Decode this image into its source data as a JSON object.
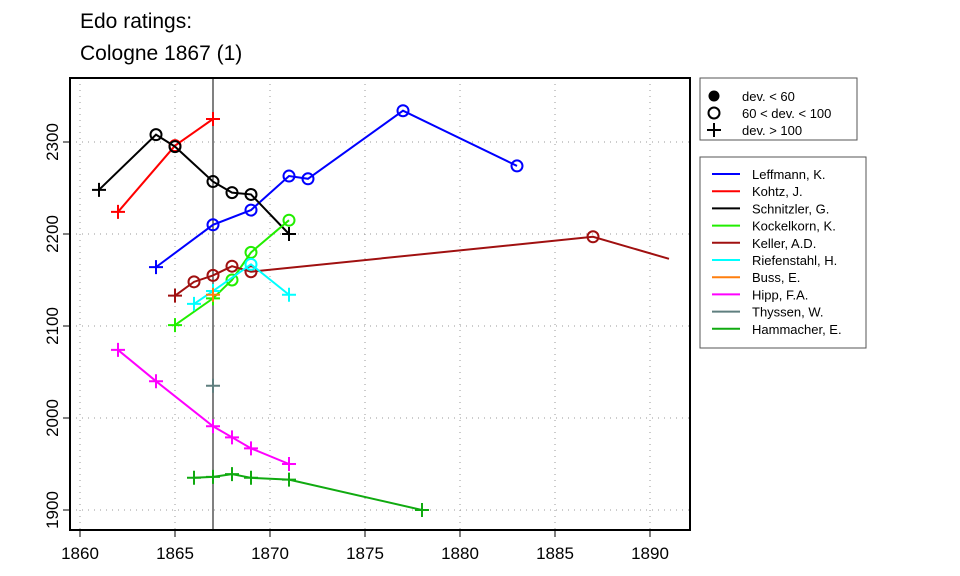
{
  "chart_data": {
    "type": "line",
    "title": [
      "Edo ratings:",
      "Cologne 1867 (1)"
    ],
    "xlim": [
      1859.5,
      1892
    ],
    "ylim": [
      1880,
      2370
    ],
    "xticks": [
      1860,
      1865,
      1870,
      1875,
      1880,
      1885,
      1890
    ],
    "yticks": [
      1900,
      2000,
      2100,
      2200,
      2300
    ],
    "reference_year": 1867,
    "grid": true,
    "marker_legend": [
      {
        "symbol": "filled",
        "label": "dev. < 60"
      },
      {
        "symbol": "open",
        "label": "60 < dev. < 100"
      },
      {
        "symbol": "plus",
        "label": "dev. > 100"
      }
    ],
    "series": [
      {
        "name": "Leffmann, K.",
        "color": "#0000ff",
        "points": [
          [
            1864,
            2164,
            "plus"
          ],
          [
            1867,
            2210,
            "open"
          ],
          [
            1869,
            2226,
            "open"
          ],
          [
            1871,
            2263,
            "open"
          ],
          [
            1872,
            2260,
            "open"
          ],
          [
            1877,
            2334,
            "open"
          ],
          [
            1883,
            2274,
            "open"
          ]
        ]
      },
      {
        "name": "Kohtz, J.",
        "color": "#ff0000",
        "points": [
          [
            1862,
            2224,
            "plus"
          ],
          [
            1865,
            2296,
            "open"
          ],
          [
            1867,
            2325,
            "plus"
          ]
        ]
      },
      {
        "name": "Schnitzler, G.",
        "color": "#000000",
        "points": [
          [
            1861,
            2248,
            "plus"
          ],
          [
            1864,
            2308,
            "open"
          ],
          [
            1865,
            2295,
            "open"
          ],
          [
            1867,
            2257,
            "open"
          ],
          [
            1868,
            2245,
            "open"
          ],
          [
            1869,
            2243,
            "open"
          ],
          [
            1871,
            2200,
            "plus"
          ]
        ]
      },
      {
        "name": "Kockelkorn, K.",
        "color": "#22ee00",
        "points": [
          [
            1865,
            2101,
            "plus"
          ],
          [
            1867,
            2130,
            "plus"
          ],
          [
            1868,
            2150,
            "open"
          ],
          [
            1869,
            2180,
            "open"
          ],
          [
            1871,
            2215,
            "open"
          ]
        ]
      },
      {
        "name": "Keller, A.D.",
        "color": "#a01010",
        "points": [
          [
            1865,
            2133,
            "plus"
          ],
          [
            1866,
            2148,
            "open"
          ],
          [
            1867,
            2155,
            "open"
          ],
          [
            1868,
            2165,
            "open"
          ],
          [
            1869,
            2159,
            "open"
          ],
          [
            1887,
            2197,
            "open"
          ],
          [
            1891,
            2173,
            "none"
          ]
        ]
      },
      {
        "name": "Riefenstahl, H.",
        "color": "#00ffff",
        "points": [
          [
            1866,
            2124,
            "plus"
          ],
          [
            1867,
            2138,
            "plus"
          ],
          [
            1869,
            2167,
            "open"
          ],
          [
            1871,
            2134,
            "plus"
          ]
        ]
      },
      {
        "name": "Buss, E.",
        "color": "#ff7f0e",
        "points": [
          [
            1867,
            2134,
            "plus"
          ]
        ]
      },
      {
        "name": "Hipp, F.A.",
        "color": "#ff00ff",
        "points": [
          [
            1862,
            2074,
            "plus"
          ],
          [
            1864,
            2040,
            "plus"
          ],
          [
            1867,
            1991,
            "plus"
          ],
          [
            1868,
            1979,
            "plus"
          ],
          [
            1869,
            1967,
            "plus"
          ],
          [
            1871,
            1950,
            "plus"
          ]
        ]
      },
      {
        "name": "Thyssen, W.",
        "color": "#5f7f7f",
        "points": [
          [
            1867,
            2035,
            "plus"
          ]
        ]
      },
      {
        "name": "Hammacher, E.",
        "color": "#10aa10",
        "points": [
          [
            1866,
            1935,
            "plus"
          ],
          [
            1867,
            1936,
            "plus"
          ],
          [
            1868,
            1939,
            "plus"
          ],
          [
            1869,
            1935,
            "plus"
          ],
          [
            1871,
            1933,
            "plus"
          ],
          [
            1878,
            1900,
            "plus"
          ]
        ]
      }
    ]
  }
}
